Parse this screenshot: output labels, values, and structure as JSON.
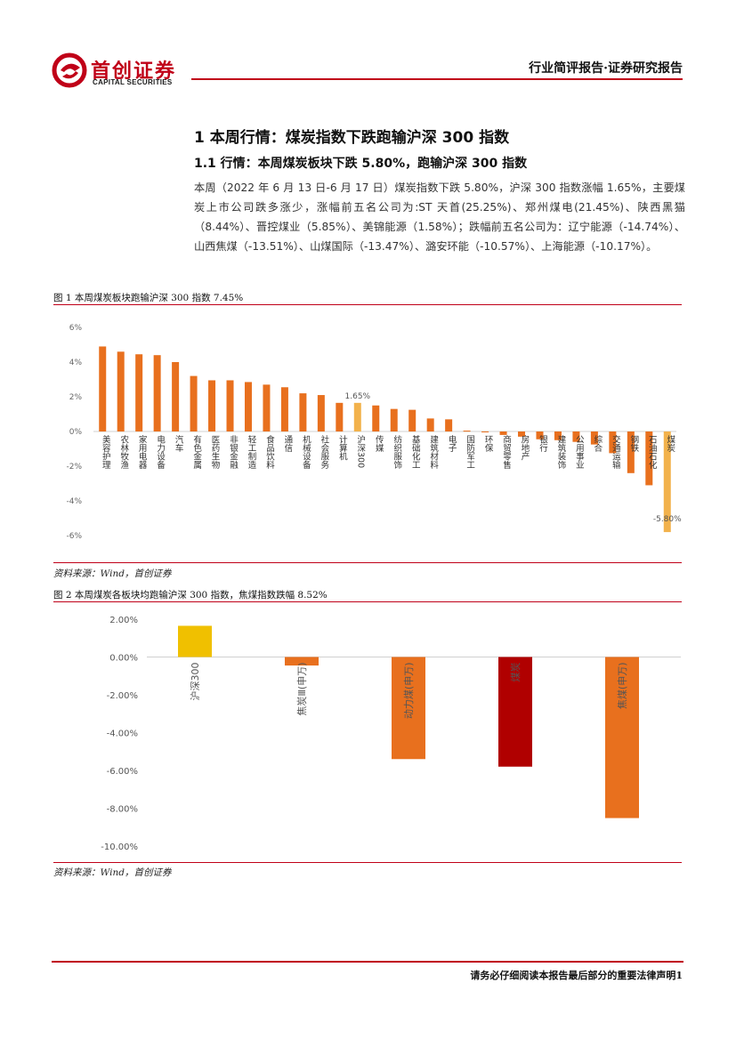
{
  "header": {
    "brand_cn": "首创证券",
    "brand_en": "CAPITAL SECURITIES",
    "report_type": "行业简评报告·证券研究报告"
  },
  "section": {
    "h1": "1 本周行情：煤炭指数下跌跑输沪深 300 指数",
    "h2": "1.1 行情：本周煤炭板块下跌 5.80%，跑输沪深 300 指数",
    "paragraph": "本周（2022 年 6 月 13 日-6 月 17 日）煤炭指数下跌 5.80%，沪深 300 指数涨幅 1.65%，主要煤炭上市公司跌多涨少，涨幅前五名公司为:ST 天首(25.25%)、郑州煤电(21.45%)、陕西黑猫（8.44%）、晋控煤业（5.85%）、美锦能源（1.58%）；跌幅前五名公司为：辽宁能源（-14.74%）、山西焦煤（-13.51%）、山煤国际（-13.47%）、潞安环能（-10.57%）、上海能源（-10.17%）。"
  },
  "figure1": {
    "title": "图 1 本周煤炭板块跑输沪深 300 指数 7.45%",
    "source": "资料来源：Wind，首创证券"
  },
  "figure2": {
    "title": "图 2 本周煤炭各板块均跑输沪深 300 指数，焦煤指数跌幅 8.52%",
    "source": "资料来源：Wind，首创证券"
  },
  "footer": {
    "disclaimer": "请务必仔细阅读本报告最后部分的重要法律声明",
    "page": "1"
  },
  "colors": {
    "brand_red": "#c00018",
    "bar_orange": "#e8701e",
    "bar_highlight": "#f2b24c",
    "bar_yellow": "#f0c000",
    "bar_dark_red": "#b00000"
  },
  "chart_data": [
    {
      "type": "bar",
      "title": "图 1 本周煤炭板块跑输沪深 300 指数 7.45%",
      "ylim": [
        -6,
        6
      ],
      "yticks": [
        "6%",
        "4%",
        "2%",
        "0%",
        "-2%",
        "-4%",
        "-6%"
      ],
      "ytick_values": [
        6,
        4,
        2,
        0,
        -2,
        -4,
        -6
      ],
      "categories": [
        "美容护理",
        "农林牧渔",
        "家用电器",
        "电力设备",
        "汽车",
        "有色金属",
        "医药生物",
        "非银金融",
        "轻工制造",
        "食品饮料",
        "通信",
        "机械设备",
        "社会服务",
        "计算机",
        "沪深300",
        "传媒",
        "纺织服饰",
        "基础化工",
        "建筑材料",
        "电子",
        "国防军工",
        "环保",
        "商贸零售",
        "房地产",
        "银行",
        "建筑装饰",
        "公用事业",
        "综合",
        "交通运输",
        "钢铁",
        "石油石化",
        "煤炭"
      ],
      "values": [
        4.9,
        4.6,
        4.45,
        4.4,
        4.0,
        3.2,
        2.95,
        2.95,
        2.85,
        2.7,
        2.55,
        2.2,
        2.1,
        1.65,
        1.65,
        1.5,
        1.3,
        1.25,
        0.75,
        0.7,
        0.05,
        -0.05,
        -0.2,
        -0.3,
        -0.45,
        -0.5,
        -0.6,
        -0.75,
        -1.25,
        -2.4,
        -3.1,
        -5.8
      ],
      "highlight": [
        "沪深300",
        "煤炭"
      ],
      "data_labels": [
        {
          "category": "沪深300",
          "text": "1.65%"
        },
        {
          "category": "煤炭",
          "text": "-5.80%"
        }
      ]
    },
    {
      "type": "bar",
      "title": "图 2 本周煤炭各板块均跑输沪深 300 指数，焦煤指数跌幅 8.52%",
      "ylim": [
        -10,
        2
      ],
      "yticks": [
        "2.00%",
        "0.00%",
        "-2.00%",
        "-4.00%",
        "-6.00%",
        "-8.00%",
        "-10.00%"
      ],
      "ytick_values": [
        2,
        0,
        -2,
        -4,
        -6,
        -8,
        -10
      ],
      "categories": [
        "沪深300",
        "焦炭Ⅲ(申万)",
        "动力煤(申万)",
        "煤炭",
        "焦煤(申万)"
      ],
      "values": [
        1.65,
        -0.45,
        -5.4,
        -5.8,
        -8.52
      ],
      "bar_colors": [
        "#f0c000",
        "#e8701e",
        "#e8701e",
        "#b00000",
        "#e8701e"
      ]
    }
  ]
}
